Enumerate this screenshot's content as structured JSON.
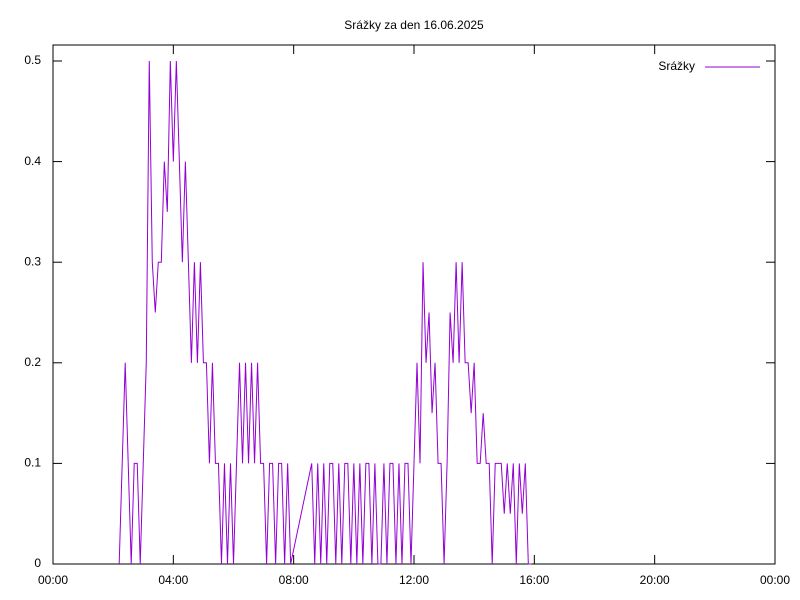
{
  "chart_data": {
    "type": "line",
    "title": "Srážky za den 16.06.2025",
    "xlim": [
      0,
      24
    ],
    "ylim": [
      0,
      0.5
    ],
    "xticks": [
      {
        "value": 0,
        "label": "00:00"
      },
      {
        "value": 4,
        "label": "04:00"
      },
      {
        "value": 8,
        "label": "08:00"
      },
      {
        "value": 12,
        "label": "12:00"
      },
      {
        "value": 16,
        "label": "16:00"
      },
      {
        "value": 20,
        "label": "20:00"
      },
      {
        "value": 24,
        "label": "00:00"
      }
    ],
    "yticks": [
      0,
      0.1,
      0.2,
      0.3,
      0.4,
      0.5
    ],
    "legend": "top-right",
    "x": [
      2.2,
      2.3,
      2.4,
      2.5,
      2.6,
      2.7,
      2.8,
      2.9,
      3.0,
      3.1,
      3.2,
      3.3,
      3.4,
      3.5,
      3.6,
      3.7,
      3.8,
      3.9,
      4.0,
      4.1,
      4.2,
      4.3,
      4.4,
      4.5,
      4.6,
      4.7,
      4.8,
      4.9,
      5.0,
      5.1,
      5.2,
      5.3,
      5.4,
      5.5,
      5.6,
      5.7,
      5.8,
      5.9,
      6.0,
      6.1,
      6.2,
      6.3,
      6.4,
      6.5,
      6.6,
      6.7,
      6.8,
      6.9,
      7.0,
      7.1,
      7.2,
      7.3,
      7.4,
      7.5,
      7.6,
      7.7,
      7.8,
      7.9,
      8.6,
      8.7,
      8.8,
      8.9,
      9.0,
      9.1,
      9.2,
      9.3,
      9.4,
      9.5,
      9.6,
      9.7,
      9.8,
      9.9,
      10.0,
      10.1,
      10.2,
      10.3,
      10.4,
      10.5,
      10.6,
      10.7,
      10.8,
      10.9,
      11.0,
      11.1,
      11.2,
      11.3,
      11.4,
      11.5,
      11.6,
      11.7,
      11.8,
      11.9,
      12.0,
      12.1,
      12.2,
      12.3,
      12.4,
      12.5,
      12.6,
      12.7,
      12.8,
      12.9,
      13.0,
      13.1,
      13.2,
      13.3,
      13.4,
      13.5,
      13.6,
      13.7,
      13.8,
      13.9,
      14.0,
      14.1,
      14.2,
      14.3,
      14.4,
      14.5,
      14.6,
      14.7,
      14.8,
      14.9,
      15.0,
      15.1,
      15.2,
      15.3,
      15.4,
      15.5,
      15.6,
      15.7,
      15.8,
      15.9
    ],
    "series": [
      {
        "name": "Srážky",
        "color": "#9400d3",
        "values": [
          0,
          0.1,
          0.2,
          0.1,
          0,
          0.1,
          0.1,
          0,
          0.1,
          0.2,
          0.5,
          0.3,
          0.25,
          0.3,
          0.3,
          0.4,
          0.35,
          0.5,
          0.4,
          0.5,
          0.4,
          0.3,
          0.4,
          0.3,
          0.2,
          0.3,
          0.2,
          0.3,
          0.2,
          0.2,
          0.1,
          0.2,
          0.1,
          0.1,
          0,
          0.1,
          0,
          0.1,
          0,
          0.1,
          0.2,
          0.1,
          0.2,
          0.1,
          0.2,
          0.1,
          0.2,
          0.1,
          0.1,
          0,
          0.1,
          0.1,
          0,
          0.1,
          0.1,
          0,
          0.1,
          0,
          0.1,
          0,
          0.1,
          0,
          0.1,
          0,
          0.1,
          0.1,
          0,
          0.1,
          0,
          0.1,
          0.1,
          0,
          0.1,
          0,
          0.1,
          0,
          0.1,
          0.1,
          0,
          0.1,
          0,
          0,
          0.1,
          0,
          0.1,
          0.1,
          0,
          0.1,
          0,
          0.1,
          0.1,
          0,
          0.1,
          0.2,
          0.1,
          0.3,
          0.2,
          0.25,
          0.15,
          0.2,
          0.1,
          0.1,
          0,
          0.1,
          0.25,
          0.2,
          0.3,
          0.2,
          0.3,
          0.2,
          0.2,
          0.15,
          0.2,
          0.1,
          0.1,
          0.15,
          0.1,
          0.1,
          0,
          0.1,
          0.1,
          0.1,
          0.05,
          0.1,
          0.05,
          0.1,
          0,
          0.1,
          0.05,
          0.1,
          0,
          0
        ]
      }
    ]
  }
}
